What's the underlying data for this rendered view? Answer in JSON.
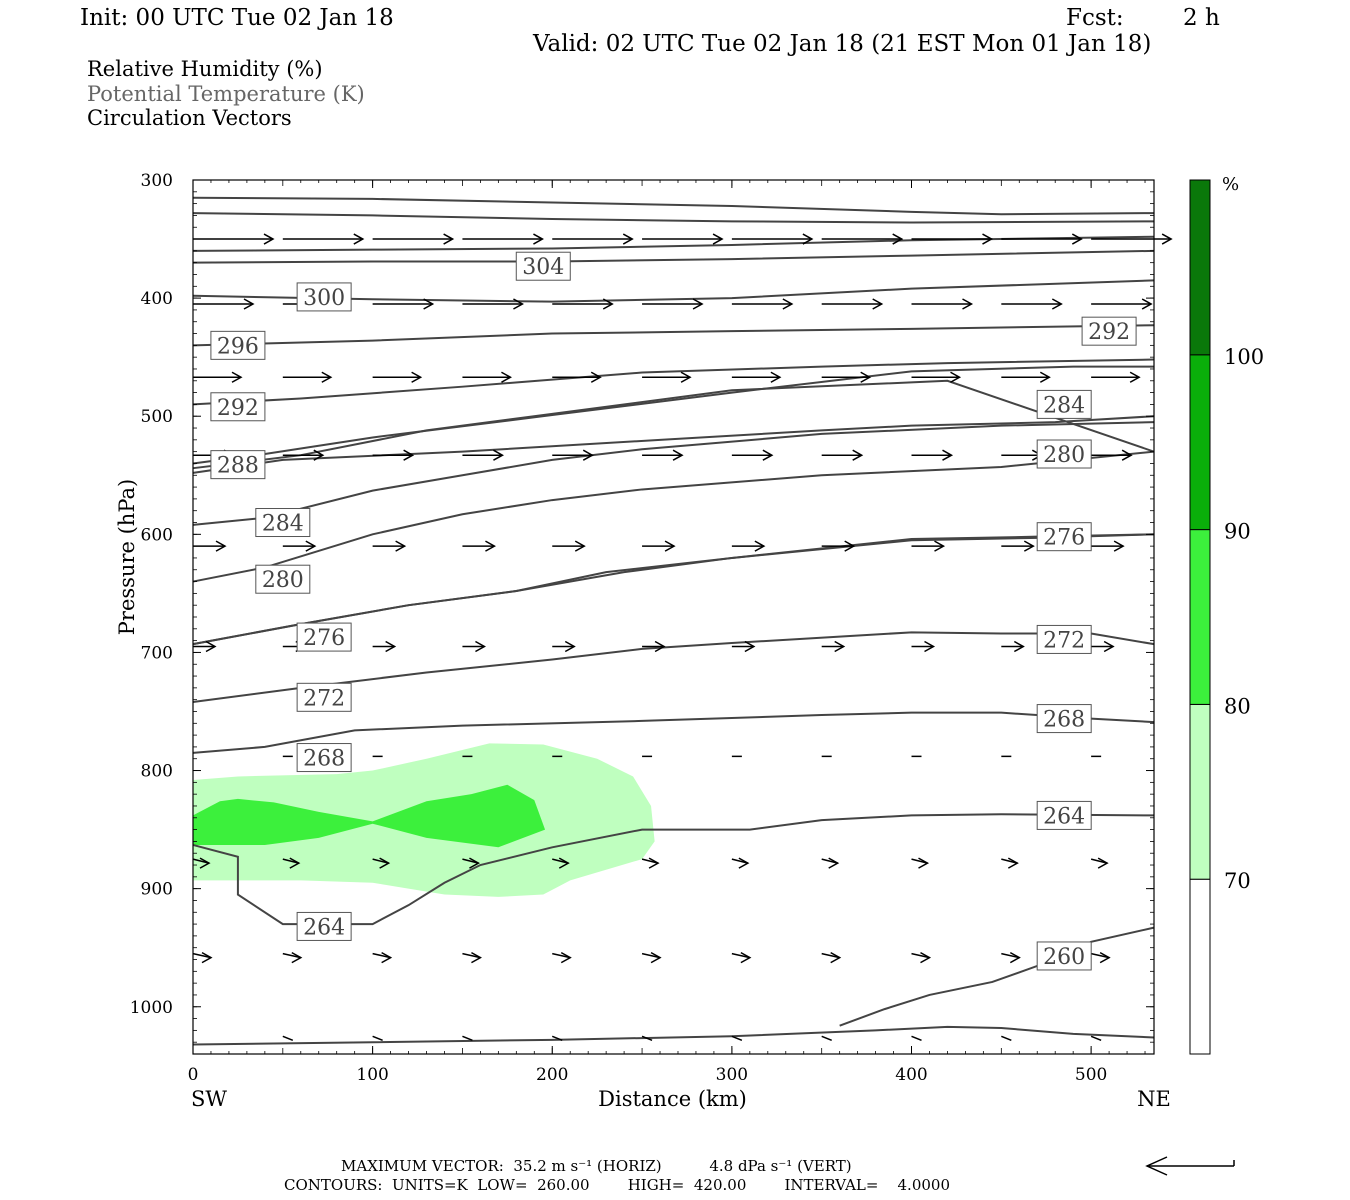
{
  "header": {
    "init": "Init: 00 UTC Tue 02 Jan 18",
    "fcst_label": "Fcst:",
    "fcst_value": "2 h",
    "valid": "Valid: 02 UTC Tue 02 Jan 18 (21 EST Mon 01 Jan 18)"
  },
  "legend": {
    "rh": "Relative Humidity (%)",
    "theta": "Potential Temperature (K)",
    "vectors": "Circulation Vectors"
  },
  "colors": {
    "rh70": "#bfffbf",
    "rh80": "#3cf03c",
    "rh90": "#0aaf0a",
    "rh100": "#0a780a",
    "contour": "#444444"
  },
  "footer": {
    "max_vector": "MAXIMUM VECTOR:  35.2 m s⁻¹ (HORIZ)          4.8 dPa s⁻¹ (VERT)",
    "contours": "CONTOURS:  UNITS=K  LOW=  260.00        HIGH=  420.00        INTERVAL=    4.0000"
  },
  "chart_data": {
    "type": "cross-section",
    "xlabel": "Distance (km)",
    "ylabel": "Pressure (hPa)",
    "xlim": [
      0,
      535
    ],
    "ylim": [
      300,
      1040
    ],
    "x_ticks": [
      0,
      100,
      200,
      300,
      400,
      500
    ],
    "y_ticks": [
      300,
      400,
      500,
      600,
      700,
      800,
      900,
      1000
    ],
    "left_end_label": "SW",
    "right_end_label": "NE",
    "colorbar": {
      "unit": "%",
      "levels": [
        70,
        80,
        90,
        100
      ],
      "labels": [
        "70",
        "80",
        "90",
        "100"
      ]
    },
    "rh_regions": [
      {
        "level": 70,
        "points": [
          [
            0,
            808
          ],
          [
            25,
            805
          ],
          [
            80,
            803
          ],
          [
            100,
            800
          ],
          [
            130,
            790
          ],
          [
            165,
            777
          ],
          [
            195,
            778
          ],
          [
            225,
            790
          ],
          [
            245,
            805
          ],
          [
            255,
            830
          ],
          [
            257,
            860
          ],
          [
            250,
            875
          ],
          [
            210,
            893
          ],
          [
            195,
            905
          ],
          [
            170,
            907
          ],
          [
            140,
            905
          ],
          [
            100,
            895
          ],
          [
            60,
            893
          ],
          [
            0,
            893
          ]
        ]
      },
      {
        "level": 80,
        "points": [
          [
            0,
            838
          ],
          [
            15,
            826
          ],
          [
            25,
            824
          ],
          [
            45,
            827
          ],
          [
            70,
            835
          ],
          [
            100,
            843
          ],
          [
            130,
            826
          ],
          [
            155,
            820
          ],
          [
            175,
            812
          ],
          [
            190,
            825
          ],
          [
            196,
            850
          ],
          [
            170,
            865
          ],
          [
            130,
            857
          ],
          [
            100,
            845
          ],
          [
            70,
            857
          ],
          [
            40,
            863
          ],
          [
            0,
            863
          ]
        ]
      }
    ],
    "theta_contours": [
      {
        "label": "304",
        "points": [
          [
            0,
            315
          ],
          [
            100,
            316
          ],
          [
            200,
            319
          ],
          [
            300,
            322
          ],
          [
            400,
            327
          ],
          [
            450,
            329
          ],
          [
            535,
            328
          ]
        ],
        "label_at": [
          195,
          373
        ]
      },
      {
        "label": "",
        "points": [
          [
            0,
            328
          ],
          [
            100,
            330
          ],
          [
            200,
            333
          ],
          [
            300,
            335
          ],
          [
            400,
            336
          ],
          [
            535,
            335
          ]
        ]
      },
      {
        "label": "300",
        "points": [
          [
            0,
            360
          ],
          [
            100,
            359
          ],
          [
            200,
            358
          ],
          [
            300,
            355
          ],
          [
            400,
            351
          ],
          [
            535,
            348
          ]
        ],
        "label_at": [
          73,
          399
        ]
      },
      {
        "label": "",
        "points": [
          [
            0,
            370
          ],
          [
            100,
            369
          ],
          [
            200,
            369
          ],
          [
            300,
            367
          ],
          [
            400,
            364
          ],
          [
            535,
            360
          ]
        ]
      },
      {
        "label": "296",
        "points": [
          [
            0,
            398
          ],
          [
            100,
            401
          ],
          [
            200,
            403
          ],
          [
            300,
            400
          ],
          [
            400,
            392
          ],
          [
            535,
            385
          ]
        ],
        "label_at": [
          25,
          440
        ]
      },
      {
        "label": "292",
        "points": [
          [
            0,
            440
          ],
          [
            100,
            436
          ],
          [
            200,
            430
          ],
          [
            300,
            428
          ],
          [
            400,
            426
          ],
          [
            535,
            423
          ]
        ],
        "label_at": [
          510,
          428
        ]
      },
      {
        "label": "292",
        "points": [
          [
            0,
            490
          ],
          [
            60,
            485
          ],
          [
            150,
            475
          ],
          [
            250,
            463
          ],
          [
            350,
            458
          ],
          [
            420,
            455
          ],
          [
            535,
            452
          ]
        ],
        "label_at": [
          25,
          492
        ]
      },
      {
        "label": "284",
        "points": [
          [
            0,
            540
          ],
          [
            40,
            532
          ],
          [
            100,
            518
          ],
          [
            200,
            499
          ],
          [
            300,
            480
          ],
          [
            400,
            462
          ],
          [
            490,
            458
          ],
          [
            535,
            458
          ]
        ],
        "label_at": [
          485,
          490
        ]
      },
      {
        "label": "288",
        "points": [
          [
            0,
            548
          ],
          [
            50,
            537
          ],
          [
            150,
            530
          ],
          [
            260,
            520
          ],
          [
            350,
            512
          ],
          [
            400,
            508
          ],
          [
            480,
            505
          ],
          [
            535,
            500
          ]
        ],
        "label_at": [
          25,
          541
        ]
      },
      {
        "label": "280",
        "points": [
          [
            0,
            544
          ],
          [
            60,
            533
          ],
          [
            130,
            512
          ],
          [
            200,
            498
          ],
          [
            300,
            478
          ],
          [
            420,
            470
          ],
          [
            535,
            530
          ]
        ],
        "label_at": [
          485,
          532
        ]
      },
      {
        "label": "284",
        "points": [
          [
            0,
            592
          ],
          [
            40,
            586
          ],
          [
            100,
            563
          ],
          [
            150,
            550
          ],
          [
            200,
            537
          ],
          [
            250,
            528
          ],
          [
            350,
            515
          ],
          [
            450,
            508
          ],
          [
            535,
            505
          ]
        ],
        "label_at": [
          50,
          590
        ]
      },
      {
        "label": "280",
        "points": [
          [
            0,
            640
          ],
          [
            40,
            628
          ],
          [
            100,
            600
          ],
          [
            150,
            583
          ],
          [
            200,
            571
          ],
          [
            250,
            562
          ],
          [
            350,
            550
          ],
          [
            450,
            543
          ],
          [
            535,
            530
          ]
        ],
        "label_at": [
          50,
          638
        ]
      },
      {
        "label": "276",
        "points": [
          [
            0,
            693
          ],
          [
            60,
            676
          ],
          [
            120,
            660
          ],
          [
            180,
            648
          ],
          [
            230,
            632
          ],
          [
            300,
            620
          ],
          [
            400,
            605
          ],
          [
            470,
            603
          ],
          [
            535,
            600
          ]
        ],
        "label_at": [
          73,
          687
        ]
      },
      {
        "label": "276",
        "points": [
          [
            0,
            693
          ],
          [
            60,
            676
          ],
          [
            120,
            660
          ],
          [
            180,
            648
          ],
          [
            240,
            632
          ],
          [
            300,
            620
          ],
          [
            400,
            604
          ],
          [
            470,
            602
          ],
          [
            535,
            600
          ]
        ],
        "label_at": [
          485,
          602
        ]
      },
      {
        "label": "272",
        "points": [
          [
            0,
            742
          ],
          [
            60,
            730
          ],
          [
            130,
            717
          ],
          [
            200,
            706
          ],
          [
            250,
            697
          ],
          [
            300,
            692
          ],
          [
            400,
            683
          ],
          [
            450,
            684
          ],
          [
            500,
            684
          ],
          [
            535,
            693
          ]
        ],
        "label_at": [
          73,
          738
        ]
      },
      {
        "label": "272",
        "points": [],
        "label_at": [
          485,
          689
        ]
      },
      {
        "label": "268",
        "points": [
          [
            0,
            785
          ],
          [
            40,
            780
          ],
          [
            90,
            766
          ],
          [
            150,
            762
          ],
          [
            250,
            758
          ],
          [
            350,
            753
          ],
          [
            400,
            751
          ],
          [
            450,
            751
          ],
          [
            500,
            756
          ],
          [
            535,
            759
          ]
        ],
        "label_at": [
          73,
          789
        ]
      },
      {
        "label": "268",
        "points": [],
        "label_at": [
          485,
          756
        ]
      },
      {
        "label": "264",
        "points": [
          [
            0,
            863
          ],
          [
            25,
            873
          ],
          [
            25,
            905
          ],
          [
            50,
            930
          ],
          [
            100,
            930
          ],
          [
            120,
            914
          ],
          [
            140,
            895
          ],
          [
            160,
            880
          ],
          [
            200,
            865
          ],
          [
            250,
            850
          ],
          [
            310,
            850
          ],
          [
            350,
            842
          ],
          [
            400,
            838
          ],
          [
            450,
            837
          ],
          [
            535,
            838
          ]
        ],
        "label_at": [
          73,
          932
        ]
      },
      {
        "label": "264",
        "points": [],
        "label_at": [
          485,
          838
        ]
      },
      {
        "label": "260",
        "points": [
          [
            360,
            1016
          ],
          [
            385,
            1002
          ],
          [
            410,
            990
          ],
          [
            445,
            979
          ],
          [
            480,
            960
          ],
          [
            500,
            945
          ],
          [
            535,
            933
          ]
        ],
        "label_at": [
          485,
          957
        ]
      },
      {
        "label": "",
        "points": [
          [
            0,
            1032
          ],
          [
            100,
            1030
          ],
          [
            200,
            1028
          ],
          [
            300,
            1025
          ],
          [
            380,
            1020
          ],
          [
            420,
            1017
          ],
          [
            450,
            1018
          ],
          [
            490,
            1023
          ],
          [
            535,
            1026
          ]
        ]
      }
    ],
    "vectors_note": "circulation vectors: horizontal flow from SW to NE, strongest near 350 hPa"
  }
}
